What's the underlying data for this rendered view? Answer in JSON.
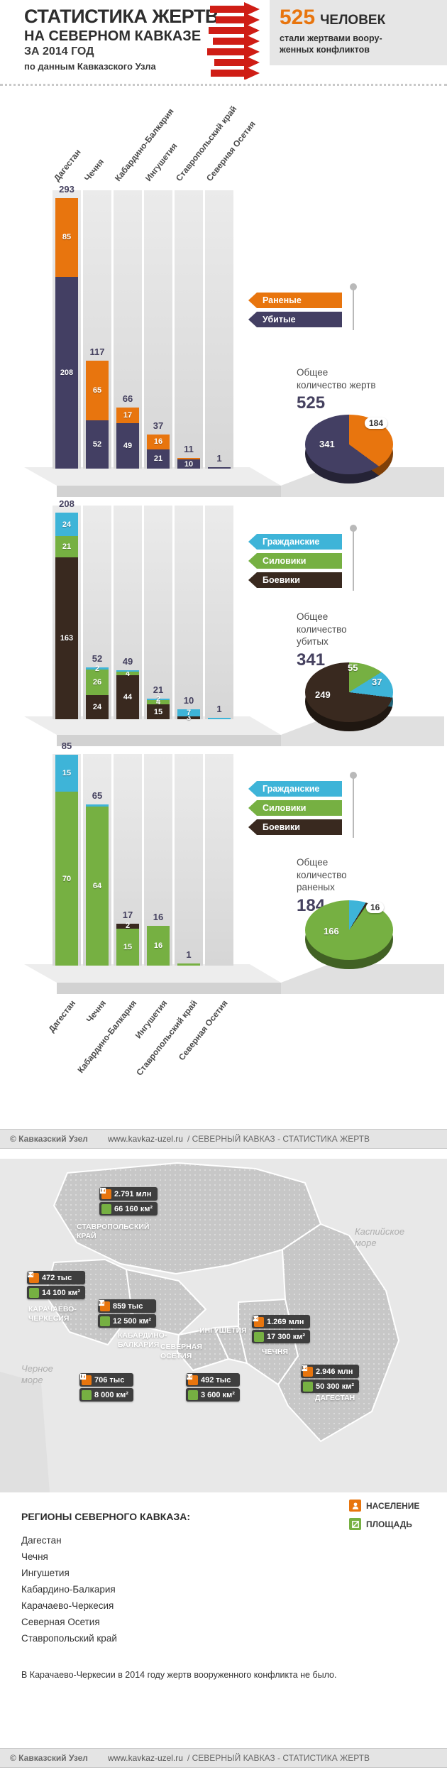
{
  "header": {
    "title_line1": "СТАТИСТИКА ЖЕРТВ",
    "title_line2": "НА СЕВЕРНОМ КАВКАЗЕ",
    "title_line3": "ЗА 2014 ГОД",
    "subtitle": "по данным Кавказского Узла",
    "accent_color": "#e8750e",
    "stat": {
      "number": "525",
      "unit": "ЧЕЛОВЕК",
      "caption_line1": "стали жертвами воору-",
      "caption_line2": "женных конфликтов"
    }
  },
  "footer": {
    "copyright": "© Кавказский Узел",
    "site": "www.kavkaz-uzel.ru",
    "section": "/ СЕВЕРНЫЙ КАВКАЗ - СТАТИСТИКА ЖЕРТВ"
  },
  "chart_data": [
    {
      "type": "bar",
      "stacked": true,
      "categories": [
        "Дагестан",
        "Чечня",
        "Кабардино-Балкария",
        "Ингушетия",
        "Ставропольский край",
        "Северная Осетия"
      ],
      "series": [
        {
          "name": "Убитые",
          "color": "#433f63",
          "values": [
            208,
            52,
            49,
            21,
            10,
            1
          ]
        },
        {
          "name": "Раненые",
          "color": "#e8750e",
          "values": [
            85,
            65,
            17,
            16,
            1,
            0
          ]
        }
      ],
      "totals": [
        293,
        117,
        66,
        37,
        11,
        1
      ],
      "legend": [
        "Раненые",
        "Убитые"
      ],
      "summary": {
        "caption": "Общее количество жертв",
        "value": 525
      },
      "pie": {
        "slices": [
          {
            "label": "Раненые",
            "value": 184,
            "color": "#e8750e"
          },
          {
            "label": "Убитые",
            "value": 341,
            "color": "#433f63"
          }
        ]
      }
    },
    {
      "type": "bar",
      "stacked": true,
      "categories": [
        "Дагестан",
        "Чечня",
        "Кабардино-Балкария",
        "Ингушетия",
        "Ставропольский край",
        "Северная Осетия"
      ],
      "series": [
        {
          "name": "Боевики",
          "color": "#39291f",
          "values": [
            163,
            24,
            44,
            15,
            3,
            0
          ]
        },
        {
          "name": "Силовики",
          "color": "#76b042",
          "values": [
            21,
            26,
            4,
            4,
            0,
            0
          ]
        },
        {
          "name": "Гражданские",
          "color": "#3eb4d8",
          "values": [
            24,
            2,
            1,
            2,
            7,
            1
          ]
        }
      ],
      "totals": [
        208,
        52,
        49,
        21,
        10,
        1
      ],
      "legend": [
        "Гражданские",
        "Силовики",
        "Боевики"
      ],
      "summary": {
        "caption": "Общее количество убитых",
        "value": 341
      },
      "pie": {
        "slices": [
          {
            "label": "Силовики",
            "value": 55,
            "color": "#76b042"
          },
          {
            "label": "Гражданские",
            "value": 37,
            "color": "#3eb4d8"
          },
          {
            "label": "Боевики",
            "value": 249,
            "color": "#39291f"
          }
        ]
      }
    },
    {
      "type": "bar",
      "stacked": true,
      "categories": [
        "Дагестан",
        "Чечня",
        "Кабардино-Балкария",
        "Ингушетия",
        "Ставропольский край",
        "Северная Осетия"
      ],
      "series": [
        {
          "name": "Силовики",
          "color": "#76b042",
          "values": [
            70,
            64,
            15,
            16,
            1,
            0
          ]
        },
        {
          "name": "Боевики",
          "color": "#39291f",
          "values": [
            0,
            0,
            2,
            0,
            0,
            0
          ]
        },
        {
          "name": "Гражданские",
          "color": "#3eb4d8",
          "values": [
            15,
            1,
            0,
            0,
            0,
            0
          ]
        }
      ],
      "totals": [
        85,
        65,
        17,
        16,
        1,
        0
      ],
      "legend": [
        "Гражданские",
        "Силовики",
        "Боевики"
      ],
      "summary": {
        "caption": "Общее количество раненых",
        "value": 184
      },
      "pie": {
        "slices": [
          {
            "label": "Гражданские",
            "value": 16,
            "color": "#3eb4d8"
          },
          {
            "label": "Боевики",
            "value": 2,
            "color": "#39291f"
          },
          {
            "label": "Силовики",
            "value": 166,
            "color": "#76b042"
          }
        ]
      }
    }
  ],
  "map": {
    "sea_labels": [
      "Каспийское море",
      "Черное море"
    ],
    "legend": [
      {
        "label": "НАСЕЛЕНИЕ",
        "color": "#e8750e"
      },
      {
        "label": "ПЛОЩАДЬ",
        "color": "#76b042"
      }
    ],
    "regions": [
      {
        "name": "Ставропольский край",
        "population": "2.791 млн",
        "area": "66 160 км²"
      },
      {
        "name": "Карачаево-Черкесия",
        "population": "472 тыс",
        "area": "14 100 км²"
      },
      {
        "name": "Кабардино-Балкария",
        "population": "859 тыс",
        "area": "12 500 км²"
      },
      {
        "name": "Ингушетия",
        "population": "492 тыс",
        "area": "3 600 км²"
      },
      {
        "name": "Северная Осетия",
        "population": "706 тыс",
        "area": "8 000 км²"
      },
      {
        "name": "Чечня",
        "population": "1.269 млн",
        "area": "17 300 км²"
      },
      {
        "name": "Дагестан",
        "population": "2.946 млн",
        "area": "50 300 км²"
      }
    ],
    "regions_list_title": "РЕГИОНЫ СЕВЕРНОГО КАВКАЗА:",
    "regions_list": [
      "Дагестан",
      "Чечня",
      "Ингушетия",
      "Кабардино-Балкария",
      "Карачаево-Черкесия",
      "Северная Осетия",
      "Ставропольский край"
    ],
    "note": "В Карачаево-Черкесии в 2014 году жертв вооруженного конфликта не было."
  }
}
